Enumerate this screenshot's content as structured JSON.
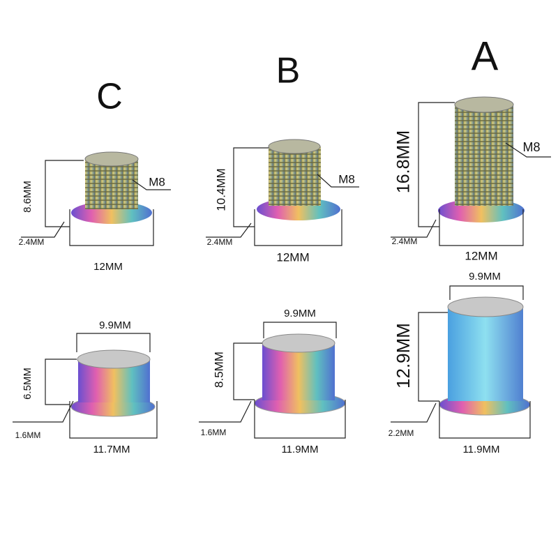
{
  "columns": [
    {
      "label": "C",
      "bolt": {
        "height": "8.6MM",
        "thread": "M8",
        "flange": "2.4MM",
        "width": "12MM"
      },
      "nut": {
        "top_width": "9.9MM",
        "height": "6.5MM",
        "flange": "1.6MM",
        "width": "11.7MM"
      }
    },
    {
      "label": "B",
      "bolt": {
        "height": "10.4MM",
        "thread": "M8",
        "flange": "2.4MM",
        "width": "12MM"
      },
      "nut": {
        "top_width": "9.9MM",
        "height": "8.5MM",
        "flange": "1.6MM",
        "width": "11.9MM"
      }
    },
    {
      "label": "A",
      "bolt": {
        "height": "16.8MM",
        "thread": "M8",
        "flange": "2.4MM",
        "width": "12MM"
      },
      "nut": {
        "top_width": "9.9MM",
        "height": "12.9MM",
        "flange": "2.2MM",
        "width": "11.9MM"
      }
    }
  ]
}
